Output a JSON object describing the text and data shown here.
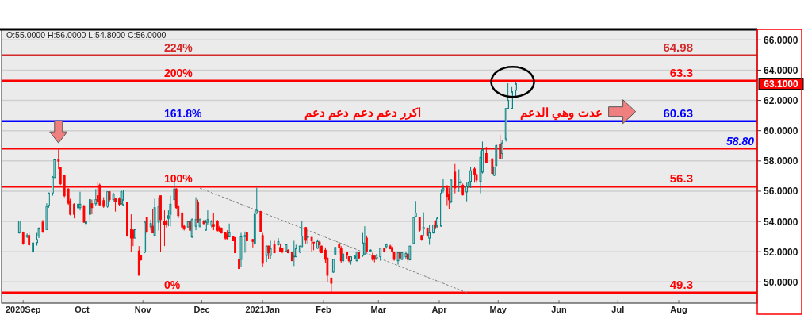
{
  "chart_data": {
    "type": "candlestick",
    "x": [
      "2020-08-30",
      "2020-09-01",
      "2020-09-03",
      "2020-09-04",
      "2020-09-06",
      "2020-09-08",
      "2020-09-09",
      "2020-09-11",
      "2020-09-13",
      "2020-09-14",
      "2020-09-16",
      "2020-09-17",
      "2020-09-19",
      "2020-09-20",
      "2020-09-22",
      "2020-09-24",
      "2020-09-25",
      "2020-09-27",
      "2020-09-29",
      "2020-09-30",
      "2020-10-02",
      "2020-10-03",
      "2020-10-05",
      "2020-10-06",
      "2020-10-08",
      "2020-10-09",
      "2020-10-10",
      "2020-10-12",
      "2020-10-14",
      "2020-10-15",
      "2020-10-17",
      "2020-10-18",
      "2020-10-20",
      "2020-10-21",
      "2020-10-22",
      "2020-10-24",
      "2020-10-26",
      "2020-10-27",
      "2020-10-28",
      "2020-10-30",
      "2020-10-31",
      "2020-11-02",
      "2020-11-03",
      "2020-11-05",
      "2020-11-06",
      "2020-11-07",
      "2020-11-09",
      "2020-11-10",
      "2020-11-12",
      "2020-11-13",
      "2020-11-14",
      "2020-11-15",
      "2020-11-17",
      "2020-11-18",
      "2020-11-19",
      "2020-11-21",
      "2020-11-22",
      "2020-11-24",
      "2020-11-25",
      "2020-11-26",
      "2020-11-28",
      "2020-11-29",
      "2020-11-30",
      "2020-12-02",
      "2020-12-03",
      "2020-12-04",
      "2020-12-06",
      "2020-12-07",
      "2020-12-09",
      "2020-12-10",
      "2020-12-11",
      "2020-12-13",
      "2020-12-14",
      "2020-12-15",
      "2020-12-17",
      "2020-12-18",
      "2020-12-20",
      "2020-12-21",
      "2020-12-23",
      "2020-12-24",
      "2020-12-27",
      "2020-12-28",
      "2020-12-29",
      "2020-12-31",
      "2021-01-01",
      "2021-01-03",
      "2021-01-04",
      "2021-01-05",
      "2021-01-07",
      "2021-01-09",
      "2021-01-10",
      "2021-01-11",
      "2021-01-13",
      "2021-01-14",
      "2021-01-16",
      "2021-01-17",
      "2021-01-18",
      "2021-01-20",
      "2021-01-21",
      "2021-01-23",
      "2021-01-24",
      "2021-01-26",
      "2021-01-27",
      "2021-01-29",
      "2021-01-30",
      "2021-01-31",
      "2021-02-02",
      "2021-02-03",
      "2021-02-05",
      "2021-02-06",
      "2021-02-07",
      "2021-02-09",
      "2021-02-10",
      "2021-02-11",
      "2021-02-13",
      "2021-02-14",
      "2021-02-15",
      "2021-02-17",
      "2021-02-18",
      "2021-02-19",
      "2021-02-21",
      "2021-02-22",
      "2021-02-23",
      "2021-02-25",
      "2021-02-26",
      "2021-02-27",
      "2021-02-28",
      "2021-03-02",
      "2021-03-04",
      "2021-03-05",
      "2021-03-07",
      "2021-03-08",
      "2021-03-09",
      "2021-03-11",
      "2021-03-12",
      "2021-03-13",
      "2021-03-15",
      "2021-03-16",
      "2021-03-17",
      "2021-03-19",
      "2021-03-20",
      "2021-03-22",
      "2021-03-23",
      "2021-03-24",
      "2021-03-26",
      "2021-03-27",
      "2021-03-29",
      "2021-03-30",
      "2021-03-31",
      "2021-04-02",
      "2021-04-03",
      "2021-04-05",
      "2021-04-06",
      "2021-04-07",
      "2021-04-09",
      "2021-04-11",
      "2021-04-12",
      "2021-04-13",
      "2021-04-15",
      "2021-04-16",
      "2021-04-17",
      "2021-04-19",
      "2021-04-20",
      "2021-04-22",
      "2021-04-23",
      "2021-04-25",
      "2021-04-28",
      "2021-04-29",
      "2021-04-30",
      "2021-05-02",
      "2021-05-03",
      "2021-05-05",
      "2021-05-06",
      "2021-05-08",
      "2021-05-10"
    ],
    "ohlc": [
      [
        53.24,
        54.05,
        53.2,
        54.03
      ],
      [
        53.24,
        53.33,
        52.46,
        52.54
      ],
      [
        53.0,
        53.2,
        52.9,
        53.07
      ],
      [
        53.07,
        53.24,
        52.37,
        52.46
      ],
      [
        51.98,
        52.6,
        51.98,
        52.58
      ],
      [
        52.6,
        53.24,
        52.4,
        52.8
      ],
      [
        53.03,
        53.6,
        52.9,
        53.56
      ],
      [
        53.95,
        54.1,
        53.24,
        53.33
      ],
      [
        53.46,
        55.2,
        53.45,
        55.0
      ],
      [
        55.03,
        55.9,
        54.9,
        55.88
      ],
      [
        55.88,
        57.0,
        55.7,
        56.93
      ],
      [
        56.9,
        58.1,
        56.9,
        58.07
      ],
      [
        58.07,
        58.77,
        57.46,
        57.98
      ],
      [
        57.58,
        57.6,
        56.4,
        56.49
      ],
      [
        57.02,
        57.05,
        55.6,
        55.7
      ],
      [
        56.14,
        56.2,
        55.1,
        55.21
      ],
      [
        55.35,
        55.5,
        54.4,
        54.47
      ],
      [
        55.14,
        55.2,
        54.2,
        54.47
      ],
      [
        54.9,
        56.05,
        54.65,
        55.14
      ],
      [
        54.91,
        55.96,
        54.73,
        55.14
      ],
      [
        55.0,
        55.1,
        53.9,
        53.95
      ],
      [
        53.86,
        54.3,
        53.6,
        54.0
      ],
      [
        54.47,
        55.5,
        53.95,
        55.44
      ],
      [
        55.17,
        55.44,
        54.47,
        54.91
      ],
      [
        55.17,
        56.14,
        55.0,
        55.44
      ],
      [
        55.7,
        56.58,
        55.17,
        55.31
      ],
      [
        56.4,
        56.5,
        55.0,
        55.1
      ],
      [
        55.38,
        55.6,
        54.9,
        55.0
      ],
      [
        55.0,
        56.0,
        54.9,
        55.96
      ],
      [
        55.96,
        56.0,
        55.3,
        55.44
      ],
      [
        55.44,
        55.9,
        55.3,
        55.8
      ],
      [
        55.49,
        55.5,
        54.65,
        55.31
      ],
      [
        55.49,
        55.6,
        55.0,
        55.14
      ],
      [
        55.17,
        56.05,
        55.1,
        55.96
      ],
      [
        55.1,
        56.05,
        55.0,
        55.44
      ],
      [
        55.26,
        55.3,
        53.0,
        53.03
      ],
      [
        53.5,
        54.47,
        51.98,
        52.9
      ],
      [
        53.42,
        53.5,
        52.37,
        52.9
      ],
      [
        52.9,
        53.5,
        52.9,
        53.46
      ],
      [
        52.05,
        52.37,
        50.44,
        50.44
      ],
      [
        51.75,
        51.8,
        51.4,
        51.46
      ],
      [
        51.98,
        54.0,
        51.9,
        53.95
      ],
      [
        54.26,
        54.3,
        53.2,
        53.33
      ],
      [
        53.64,
        54.12,
        53.42,
        53.86
      ],
      [
        53.68,
        54.82,
        53.24,
        53.24
      ],
      [
        53.07,
        55.5,
        53.0,
        54.91
      ],
      [
        53.95,
        55.6,
        53.4,
        55.0
      ],
      [
        55.7,
        55.7,
        52.0,
        54.12
      ],
      [
        54.0,
        54.73,
        52.37,
        53.8
      ],
      [
        53.98,
        54.1,
        53.6,
        53.77
      ],
      [
        54.2,
        54.73,
        53.68,
        54.38
      ],
      [
        54.47,
        55.7,
        53.68,
        55.14
      ],
      [
        55.44,
        56.93,
        55.0,
        56.14
      ],
      [
        56.14,
        56.2,
        54.8,
        54.91
      ],
      [
        55.0,
        55.1,
        54.2,
        54.38
      ],
      [
        54.56,
        54.6,
        53.42,
        53.63
      ],
      [
        53.68,
        53.8,
        53.4,
        53.56
      ],
      [
        53.63,
        54.0,
        53.6,
        53.98
      ],
      [
        54.03,
        54.1,
        53.3,
        53.42
      ],
      [
        52.98,
        54.2,
        52.9,
        54.12
      ],
      [
        53.68,
        55.6,
        53.42,
        54.12
      ],
      [
        55.26,
        55.44,
        53.9,
        53.95
      ],
      [
        53.68,
        54.2,
        53.6,
        54.12
      ],
      [
        54.03,
        54.1,
        53.8,
        53.86
      ],
      [
        53.42,
        54.1,
        53.4,
        53.95
      ],
      [
        53.95,
        54.73,
        53.77,
        54.12
      ],
      [
        53.74,
        54.1,
        53.6,
        53.98
      ],
      [
        53.8,
        54.56,
        53.42,
        53.67
      ],
      [
        54.03,
        54.1,
        53.33,
        53.42
      ],
      [
        53.6,
        53.7,
        53.3,
        53.38
      ],
      [
        53.56,
        53.6,
        53.2,
        53.24
      ],
      [
        53.24,
        53.3,
        52.8,
        52.9
      ],
      [
        53.16,
        53.42,
        52.81,
        52.86
      ],
      [
        52.98,
        53.86,
        52.98,
        53.24
      ],
      [
        52.98,
        53.0,
        52.7,
        52.72
      ],
      [
        52.93,
        53.0,
        51.9,
        51.93
      ],
      [
        51.49,
        51.5,
        50.17,
        50.88
      ],
      [
        51.49,
        53.24,
        50.96,
        52.98
      ],
      [
        53.0,
        53.33,
        51.93,
        53.07
      ],
      [
        53.24,
        53.24,
        51.98,
        52.72
      ],
      [
        52.81,
        52.81,
        52.28,
        52.68
      ],
      [
        52.54,
        54.73,
        52.46,
        54.47
      ],
      [
        54.56,
        56.23,
        54.47,
        54.73
      ],
      [
        54.65,
        54.7,
        53.3,
        53.33
      ],
      [
        53.07,
        53.24,
        50.96,
        51.23
      ],
      [
        51.75,
        52.4,
        51.32,
        52.37
      ],
      [
        52.37,
        52.4,
        51.5,
        51.93
      ],
      [
        51.75,
        52.72,
        51.49,
        52.19
      ],
      [
        52.46,
        52.72,
        51.9,
        51.93
      ],
      [
        52.46,
        52.9,
        52.4,
        52.67
      ],
      [
        52.28,
        52.54,
        51.98,
        52.02
      ],
      [
        52.19,
        52.2,
        51.9,
        52.02
      ],
      [
        52.02,
        52.5,
        51.98,
        52.46
      ],
      [
        52.1,
        52.15,
        51.9,
        51.93
      ],
      [
        51.93,
        51.95,
        51.4,
        51.4
      ],
      [
        51.66,
        52.72,
        51.05,
        51.7
      ],
      [
        51.66,
        52.46,
        51.66,
        52.19
      ],
      [
        51.98,
        52.4,
        51.9,
        52.37
      ],
      [
        52.33,
        54.03,
        52.33,
        53.03
      ],
      [
        53.6,
        53.6,
        52.54,
        52.75
      ],
      [
        52.95,
        53.42,
        52.54,
        53.0
      ],
      [
        52.95,
        52.95,
        52.02,
        52.72
      ],
      [
        52.63,
        52.63,
        52.1,
        52.58
      ],
      [
        52.23,
        52.81,
        52.19,
        52.68
      ],
      [
        52.63,
        52.72,
        52.02,
        52.46
      ],
      [
        52.37,
        52.4,
        51.9,
        51.93
      ],
      [
        52.1,
        52.28,
        51.23,
        51.49
      ],
      [
        51.58,
        51.58,
        50.0,
        50.44
      ],
      [
        50.26,
        50.26,
        49.3,
        49.91
      ],
      [
        50.65,
        51.5,
        50.6,
        51.49
      ],
      [
        51.84,
        52.3,
        51.8,
        52.28
      ],
      [
        52.49,
        52.63,
        51.84,
        52.28
      ],
      [
        52.19,
        52.37,
        51.23,
        51.4
      ],
      [
        51.4,
        51.9,
        51.3,
        51.84
      ],
      [
        51.93,
        52.0,
        51.49,
        51.75
      ],
      [
        51.66,
        51.7,
        51.3,
        51.4
      ],
      [
        51.4,
        51.66,
        51.14,
        51.66
      ],
      [
        51.58,
        51.75,
        51.5,
        51.7
      ],
      [
        51.4,
        52.02,
        51.35,
        51.98
      ],
      [
        51.98,
        52.0,
        51.55,
        51.58
      ],
      [
        51.75,
        53.24,
        51.66,
        52.58
      ],
      [
        51.84,
        53.68,
        51.84,
        52.54
      ],
      [
        52.9,
        53.07,
        51.93,
        52.02
      ],
      [
        52.05,
        52.15,
        52.0,
        52.1
      ],
      [
        51.75,
        51.93,
        51.4,
        51.49
      ],
      [
        51.7,
        51.75,
        51.3,
        51.49
      ],
      [
        51.58,
        51.84,
        51.45,
        51.75
      ],
      [
        51.66,
        52.23,
        51.4,
        52.23
      ],
      [
        52.23,
        52.25,
        51.95,
        52.02
      ],
      [
        52.33,
        52.54,
        52.2,
        52.46
      ],
      [
        52.37,
        52.46,
        52.19,
        52.19
      ],
      [
        52.28,
        52.46,
        51.84,
        52.02
      ],
      [
        51.93,
        52.02,
        51.4,
        51.49
      ],
      [
        51.4,
        51.93,
        51.14,
        51.93
      ],
      [
        51.93,
        51.93,
        51.23,
        51.58
      ],
      [
        51.49,
        51.98,
        51.45,
        51.93
      ],
      [
        51.66,
        52.02,
        51.49,
        51.88
      ],
      [
        51.84,
        51.84,
        51.23,
        51.49
      ],
      [
        51.46,
        52.37,
        51.42,
        52.37
      ],
      [
        52.54,
        54.3,
        52.5,
        54.26
      ],
      [
        54.33,
        55.35,
        54.3,
        54.56
      ],
      [
        54.26,
        54.3,
        53.3,
        53.42
      ],
      [
        53.07,
        53.1,
        52.72,
        52.81
      ],
      [
        53.5,
        54.6,
        53.07,
        53.6
      ],
      [
        53.56,
        53.6,
        53.0,
        53.1
      ],
      [
        52.9,
        53.77,
        52.46,
        53.24
      ],
      [
        53.24,
        53.8,
        53.2,
        53.77
      ],
      [
        54.03,
        54.1,
        53.5,
        53.6
      ],
      [
        53.68,
        54.3,
        53.6,
        54.21
      ],
      [
        53.68,
        56.14,
        53.67,
        55.86
      ],
      [
        56.05,
        56.82,
        55.9,
        56.2
      ],
      [
        56.21,
        56.4,
        55.07,
        55.65
      ],
      [
        55.77,
        56.21,
        54.8,
        55.42
      ],
      [
        55.33,
        56.74,
        55.2,
        56.74
      ],
      [
        57.26,
        57.8,
        55.86,
        56.21
      ],
      [
        56.56,
        57.44,
        55.95,
        56.6
      ],
      [
        56.56,
        56.8,
        56.4,
        56.62
      ],
      [
        56.39,
        56.5,
        55.7,
        55.77
      ],
      [
        55.95,
        56.56,
        55.33,
        56.3
      ],
      [
        56.3,
        56.65,
        56.2,
        56.56
      ],
      [
        56.65,
        57.6,
        56.21,
        57.35
      ],
      [
        57.47,
        57.6,
        56.56,
        57.12
      ],
      [
        57.09,
        57.17,
        56.56,
        56.74
      ],
      [
        56.65,
        58.67,
        55.86,
        58.23
      ],
      [
        57.26,
        59.28,
        57.17,
        58.75
      ],
      [
        58.49,
        58.93,
        57.88,
        57.88
      ],
      [
        58.14,
        58.14,
        57.1,
        57.18
      ],
      [
        57.05,
        57.61,
        57.0,
        57.61
      ],
      [
        57.7,
        59.1,
        57.6,
        59.02
      ],
      [
        59.1,
        59.72,
        58.14,
        58.17
      ],
      [
        58.49,
        59.37,
        58.14,
        59.19
      ],
      [
        59.46,
        61.47,
        59.28,
        61.47
      ],
      [
        61.47,
        63.14,
        61.47,
        62.0
      ],
      [
        61.47,
        62.88,
        61.47,
        62.58
      ],
      [
        62.67,
        63.23,
        62.2,
        63.1
      ]
    ],
    "series": [
      {
        "type": "line",
        "x": [
          "2020-11-30",
          "2021-04-15"
        ],
        "values": [
          56.2,
          49.3
        ],
        "color": "#808080",
        "line_style": "dashed"
      }
    ],
    "xlim": [
      "2020-08-21",
      "2021-09-10"
    ],
    "xticks": [
      {
        "value": "2020-09-01",
        "label": "2020Sep"
      },
      {
        "value": "2020-10-01",
        "label": "Oct"
      },
      {
        "value": "2020-11-01",
        "label": "Nov"
      },
      {
        "value": "2020-12-01",
        "label": "Dec"
      },
      {
        "value": "2021-01-01",
        "label": "2021Jan"
      },
      {
        "value": "2021-02-01",
        "label": "Feb"
      },
      {
        "value": "2021-03-01",
        "label": "Mar"
      },
      {
        "value": "2021-04-01",
        "label": "Apr"
      },
      {
        "value": "2021-05-01",
        "label": "May"
      },
      {
        "value": "2021-06-01",
        "label": "Jun"
      },
      {
        "value": "2021-07-01",
        "label": "Jul"
      },
      {
        "value": "2021-08-01",
        "label": "Aug"
      }
    ],
    "ylim": [
      48.6,
      66.7
    ],
    "yticks": [
      {
        "value": 50,
        "label": "50.0000"
      },
      {
        "value": 52,
        "label": "52.0000"
      },
      {
        "value": 54,
        "label": "54.0000"
      },
      {
        "value": 56,
        "label": "56.0000"
      },
      {
        "value": 58,
        "label": "58.0000"
      },
      {
        "value": 60,
        "label": "60.0000"
      },
      {
        "value": 62,
        "label": "62.0000"
      },
      {
        "value": 64,
        "label": "64.0000"
      },
      {
        "value": 66,
        "label": "66.0000"
      }
    ],
    "grid": "y",
    "ref_lines": [
      {
        "axis": "y",
        "value": 64.98,
        "label": "64.98",
        "color": "#d42a2a"
      },
      {
        "axis": "y",
        "value": 63.3,
        "label": "63.3",
        "color": "#ff0000"
      },
      {
        "axis": "y",
        "value": 60.63,
        "label": "60.63",
        "color": "#0000ff"
      },
      {
        "axis": "y",
        "value": 58.8,
        "label": "58.80",
        "color": "#ff0000"
      },
      {
        "axis": "y",
        "value": 56.3,
        "label": "56.3",
        "color": "#ff0000"
      },
      {
        "axis": "y",
        "value": 49.3,
        "label": "49.3",
        "color": "#ff0000"
      }
    ],
    "annotations": [
      "O:55.0000  H:56.0000  L:54.8000  C:56.0000",
      {
        "text": "224%",
        "y": 64.98
      },
      {
        "text": "200%",
        "y": 63.3
      },
      {
        "text": "161.8%",
        "y": 60.63
      },
      {
        "text": "100%",
        "y": 56.3
      },
      {
        "text": "0%",
        "y": 49.3
      },
      "اكرر دعم دعم دعم دعم",
      "عدت وهي الدعم",
      "63.1000"
    ]
  }
}
